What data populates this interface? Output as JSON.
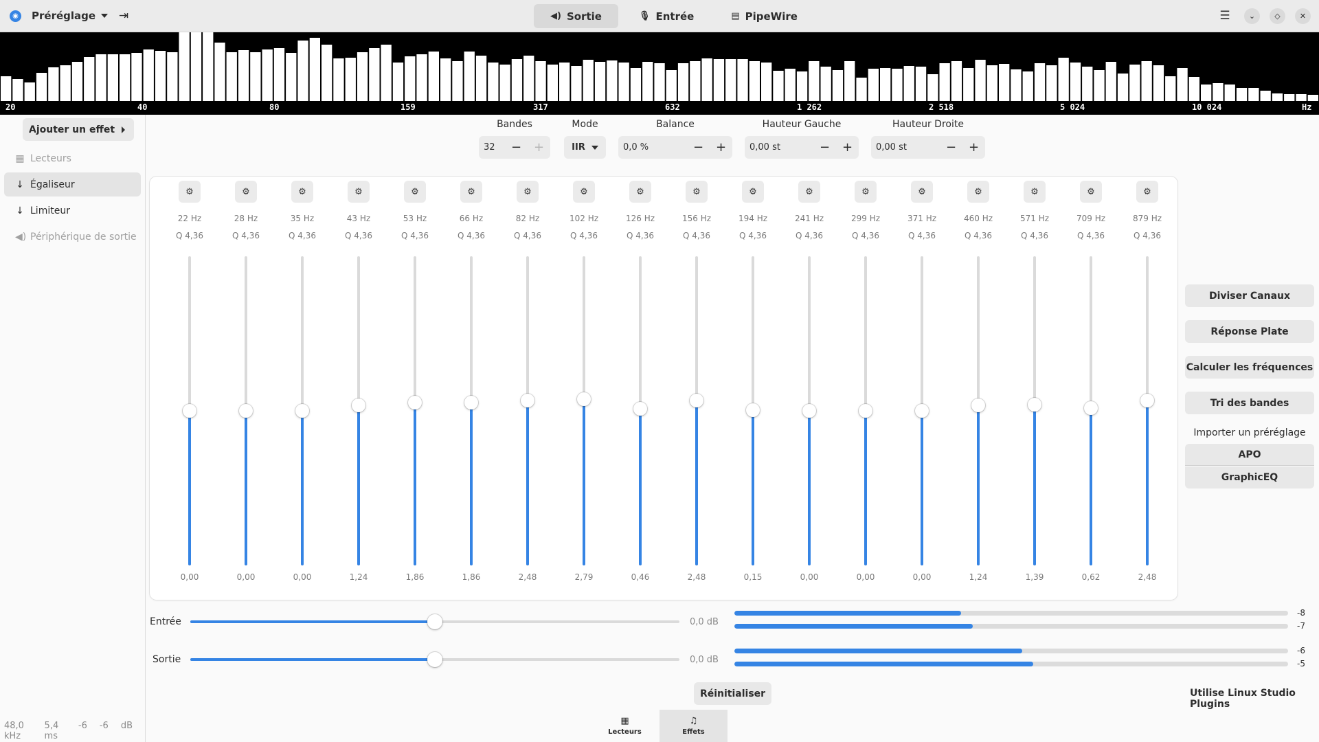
{
  "header": {
    "preset_label": "Préréglage",
    "tabs": [
      {
        "label": "Sortie",
        "icon": "speaker-icon"
      },
      {
        "label": "Entrée",
        "icon": "microphone-icon"
      },
      {
        "label": "PipeWire",
        "icon": "pipewire-icon"
      }
    ],
    "active_tab": "Sortie"
  },
  "spectrum": {
    "labels": [
      "20",
      "40",
      "80",
      "159",
      "317",
      "632",
      "1 262",
      "2 518",
      "5 024",
      "10 024",
      "Hz"
    ],
    "levels": [
      0.36,
      0.32,
      0.27,
      0.41,
      0.49,
      0.52,
      0.57,
      0.64,
      0.68,
      0.68,
      0.68,
      0.7,
      0.75,
      0.73,
      0.71,
      1.0,
      1.0,
      1.0,
      0.85,
      0.71,
      0.74,
      0.71,
      0.75,
      0.77,
      0.7,
      0.88,
      0.92,
      0.82,
      0.62,
      0.63,
      0.71,
      0.77,
      0.82,
      0.56,
      0.65,
      0.68,
      0.72,
      0.62,
      0.58,
      0.72,
      0.66,
      0.56,
      0.53,
      0.61,
      0.66,
      0.58,
      0.53,
      0.56,
      0.51,
      0.6,
      0.57,
      0.59,
      0.56,
      0.48,
      0.57,
      0.55,
      0.45,
      0.55,
      0.58,
      0.62,
      0.61,
      0.61,
      0.61,
      0.58,
      0.56,
      0.44,
      0.47,
      0.43,
      0.58,
      0.5,
      0.45,
      0.58,
      0.34,
      0.47,
      0.48,
      0.47,
      0.51,
      0.5,
      0.39,
      0.55,
      0.58,
      0.48,
      0.6,
      0.52,
      0.54,
      0.46,
      0.43,
      0.55,
      0.52,
      0.63,
      0.56,
      0.5,
      0.45,
      0.57,
      0.4,
      0.53,
      0.58,
      0.52,
      0.36,
      0.48,
      0.35,
      0.24,
      0.26,
      0.24,
      0.19,
      0.19,
      0.15,
      0.11,
      0.1,
      0.1,
      0.09
    ],
    "bar_color": "#ffffff"
  },
  "sidebar": {
    "add_effect_label": "Ajouter un effet",
    "items": [
      {
        "label": "Lecteurs",
        "icon": "players-icon",
        "dim": true
      },
      {
        "label": "Égaliseur",
        "icon": "arrow-down-icon",
        "dim": false,
        "active": true
      },
      {
        "label": "Limiteur",
        "icon": "arrow-down-icon",
        "dim": false
      },
      {
        "label": "Périphérique de sortie",
        "icon": "speaker-icon",
        "dim": true
      }
    ]
  },
  "status": {
    "rate": "48,0 kHz",
    "latency": "5,4 ms",
    "level_left": "-6",
    "level_right": "-6",
    "unit": "dB"
  },
  "controls": {
    "bands_label": "Bandes",
    "bands_value": "32",
    "mode_label": "Mode",
    "mode_value": "IIR",
    "balance_label": "Balance",
    "balance_value": "0,0 %",
    "pitch_left_label": "Hauteur Gauche",
    "pitch_left_value": "0,00 st",
    "pitch_right_label": "Hauteur Droite",
    "pitch_right_value": "0,00 st"
  },
  "eq": {
    "gain_range_db": [
      -36,
      36
    ],
    "bands": [
      {
        "freq": "22 Hz",
        "q": "Q 4,36",
        "gain": "0,00",
        "level": 0.0
      },
      {
        "freq": "28 Hz",
        "q": "Q 4,36",
        "gain": "0,00",
        "level": 0.0
      },
      {
        "freq": "35 Hz",
        "q": "Q 4,36",
        "gain": "0,00",
        "level": 0.0
      },
      {
        "freq": "43 Hz",
        "q": "Q 4,36",
        "gain": "1,24",
        "level": 1.24
      },
      {
        "freq": "53 Hz",
        "q": "Q 4,36",
        "gain": "1,86",
        "level": 1.86
      },
      {
        "freq": "66 Hz",
        "q": "Q 4,36",
        "gain": "1,86",
        "level": 1.86
      },
      {
        "freq": "82 Hz",
        "q": "Q 4,36",
        "gain": "2,48",
        "level": 2.48
      },
      {
        "freq": "102 Hz",
        "q": "Q 4,36",
        "gain": "2,79",
        "level": 2.79
      },
      {
        "freq": "126 Hz",
        "q": "Q 4,36",
        "gain": "0,46",
        "level": 0.46
      },
      {
        "freq": "156 Hz",
        "q": "Q 4,36",
        "gain": "2,48",
        "level": 2.48
      },
      {
        "freq": "194 Hz",
        "q": "Q 4,36",
        "gain": "0,15",
        "level": 0.15
      },
      {
        "freq": "241 Hz",
        "q": "Q 4,36",
        "gain": "0,00",
        "level": 0.0
      },
      {
        "freq": "299 Hz",
        "q": "Q 4,36",
        "gain": "0,00",
        "level": 0.0
      },
      {
        "freq": "371 Hz",
        "q": "Q 4,36",
        "gain": "0,00",
        "level": 0.0
      },
      {
        "freq": "460 Hz",
        "q": "Q 4,36",
        "gain": "1,24",
        "level": 1.24
      },
      {
        "freq": "571 Hz",
        "q": "Q 4,36",
        "gain": "1,39",
        "level": 1.39
      },
      {
        "freq": "709 Hz",
        "q": "Q 4,36",
        "gain": "0,62",
        "level": 0.62
      },
      {
        "freq": "879 Hz",
        "q": "Q 4,36",
        "gain": "2,48",
        "level": 2.48
      }
    ]
  },
  "right_panel": {
    "split_channels": "Diviser Canaux",
    "flat_response": "Réponse Plate",
    "calculate_frequencies": "Calculer les fréquences",
    "sort_bands": "Tri des bandes",
    "import_label": "Importer un préréglage",
    "apo": "APO",
    "graphiceq": "GraphicEQ"
  },
  "levels": {
    "input_label": "Entrée",
    "input_db": "0,0 dB",
    "input_gain_fraction": 0.5,
    "output_label": "Sortie",
    "output_db": "0,0 dB",
    "output_gain_fraction": 0.5,
    "input_meters": [
      {
        "value": "-8",
        "fraction": 0.41
      },
      {
        "value": "-7",
        "fraction": 0.43
      }
    ],
    "output_meters": [
      {
        "value": "-6",
        "fraction": 0.52
      },
      {
        "value": "-5",
        "fraction": 0.54
      }
    ]
  },
  "footer": {
    "reset_label": "Réinitialiser",
    "lsp_note": "Utilise Linux Studio Plugins",
    "bottom_tabs": [
      {
        "label": "Lecteurs",
        "icon": "players-icon"
      },
      {
        "label": "Effets",
        "icon": "music-note-icon",
        "active": true
      }
    ]
  },
  "colors": {
    "accent": "#3584e4",
    "trough": "#dadada",
    "spectrum_bg": "#000000"
  }
}
